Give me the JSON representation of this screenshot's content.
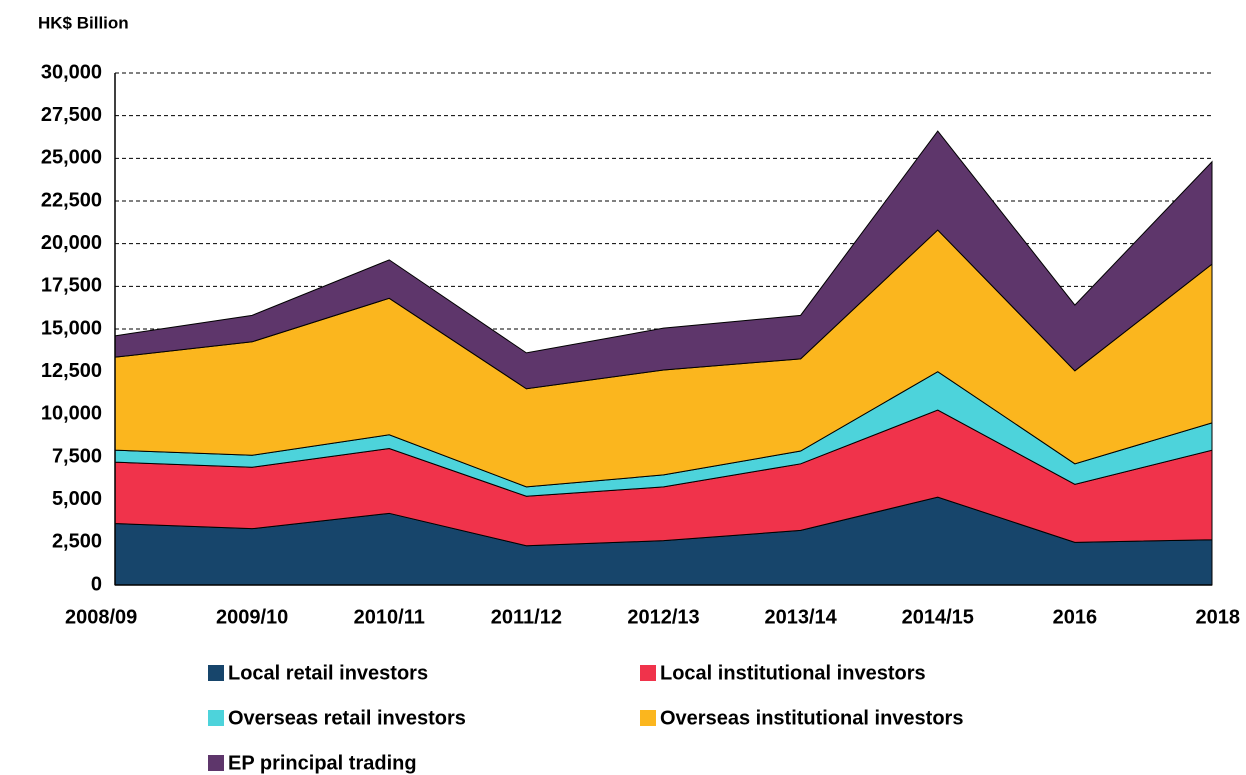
{
  "chart_data": {
    "type": "stacked_area",
    "y_axis_label": "HK$ Billion",
    "categories": [
      "2008/09",
      "2009/10",
      "2010/11",
      "2011/12",
      "2012/13",
      "2013/14",
      "2014/15",
      "2016",
      "2018"
    ],
    "series": [
      {
        "name": "Local retail investors",
        "color": "#17456b",
        "values": [
          3600,
          3300,
          4200,
          2300,
          2600,
          3200,
          5150,
          2500,
          2650
        ]
      },
      {
        "name": "Local institutional investors",
        "color": "#f0334b",
        "values": [
          3600,
          3600,
          3800,
          2900,
          3150,
          3900,
          5100,
          3400,
          5250
        ]
      },
      {
        "name": "Overseas retail investors",
        "color": "#4dd3db",
        "values": [
          700,
          700,
          800,
          550,
          700,
          750,
          2250,
          1200,
          1600
        ]
      },
      {
        "name": "Overseas institutional investors",
        "color": "#fbb61e",
        "values": [
          5450,
          6650,
          8000,
          5750,
          6150,
          5400,
          8300,
          5450,
          9300
        ]
      },
      {
        "name": "EP principal trading",
        "color": "#5e366b",
        "values": [
          1250,
          1550,
          2250,
          2100,
          2450,
          2550,
          5800,
          3850,
          6000
        ]
      }
    ],
    "ylim": [
      0,
      30000
    ],
    "yticks": [
      0,
      {
        "value": 2500,
        "label": "2,500"
      },
      {
        "value": 5000,
        "label": "5,000"
      },
      {
        "value": 7500,
        "label": "7,500"
      },
      {
        "value": 10000,
        "label": "10,000"
      },
      {
        "value": 12500,
        "label": "12,500"
      },
      {
        "value": 15000,
        "label": "15,000"
      },
      {
        "value": 17500,
        "label": "17,500"
      },
      {
        "value": 20000,
        "label": "20,000"
      },
      {
        "value": 22500,
        "label": "22,500"
      },
      {
        "value": 25000,
        "label": "25,000"
      },
      {
        "value": 27500,
        "label": "27,500"
      },
      {
        "value": 30000,
        "label": "30,000"
      }
    ],
    "grid": true
  }
}
